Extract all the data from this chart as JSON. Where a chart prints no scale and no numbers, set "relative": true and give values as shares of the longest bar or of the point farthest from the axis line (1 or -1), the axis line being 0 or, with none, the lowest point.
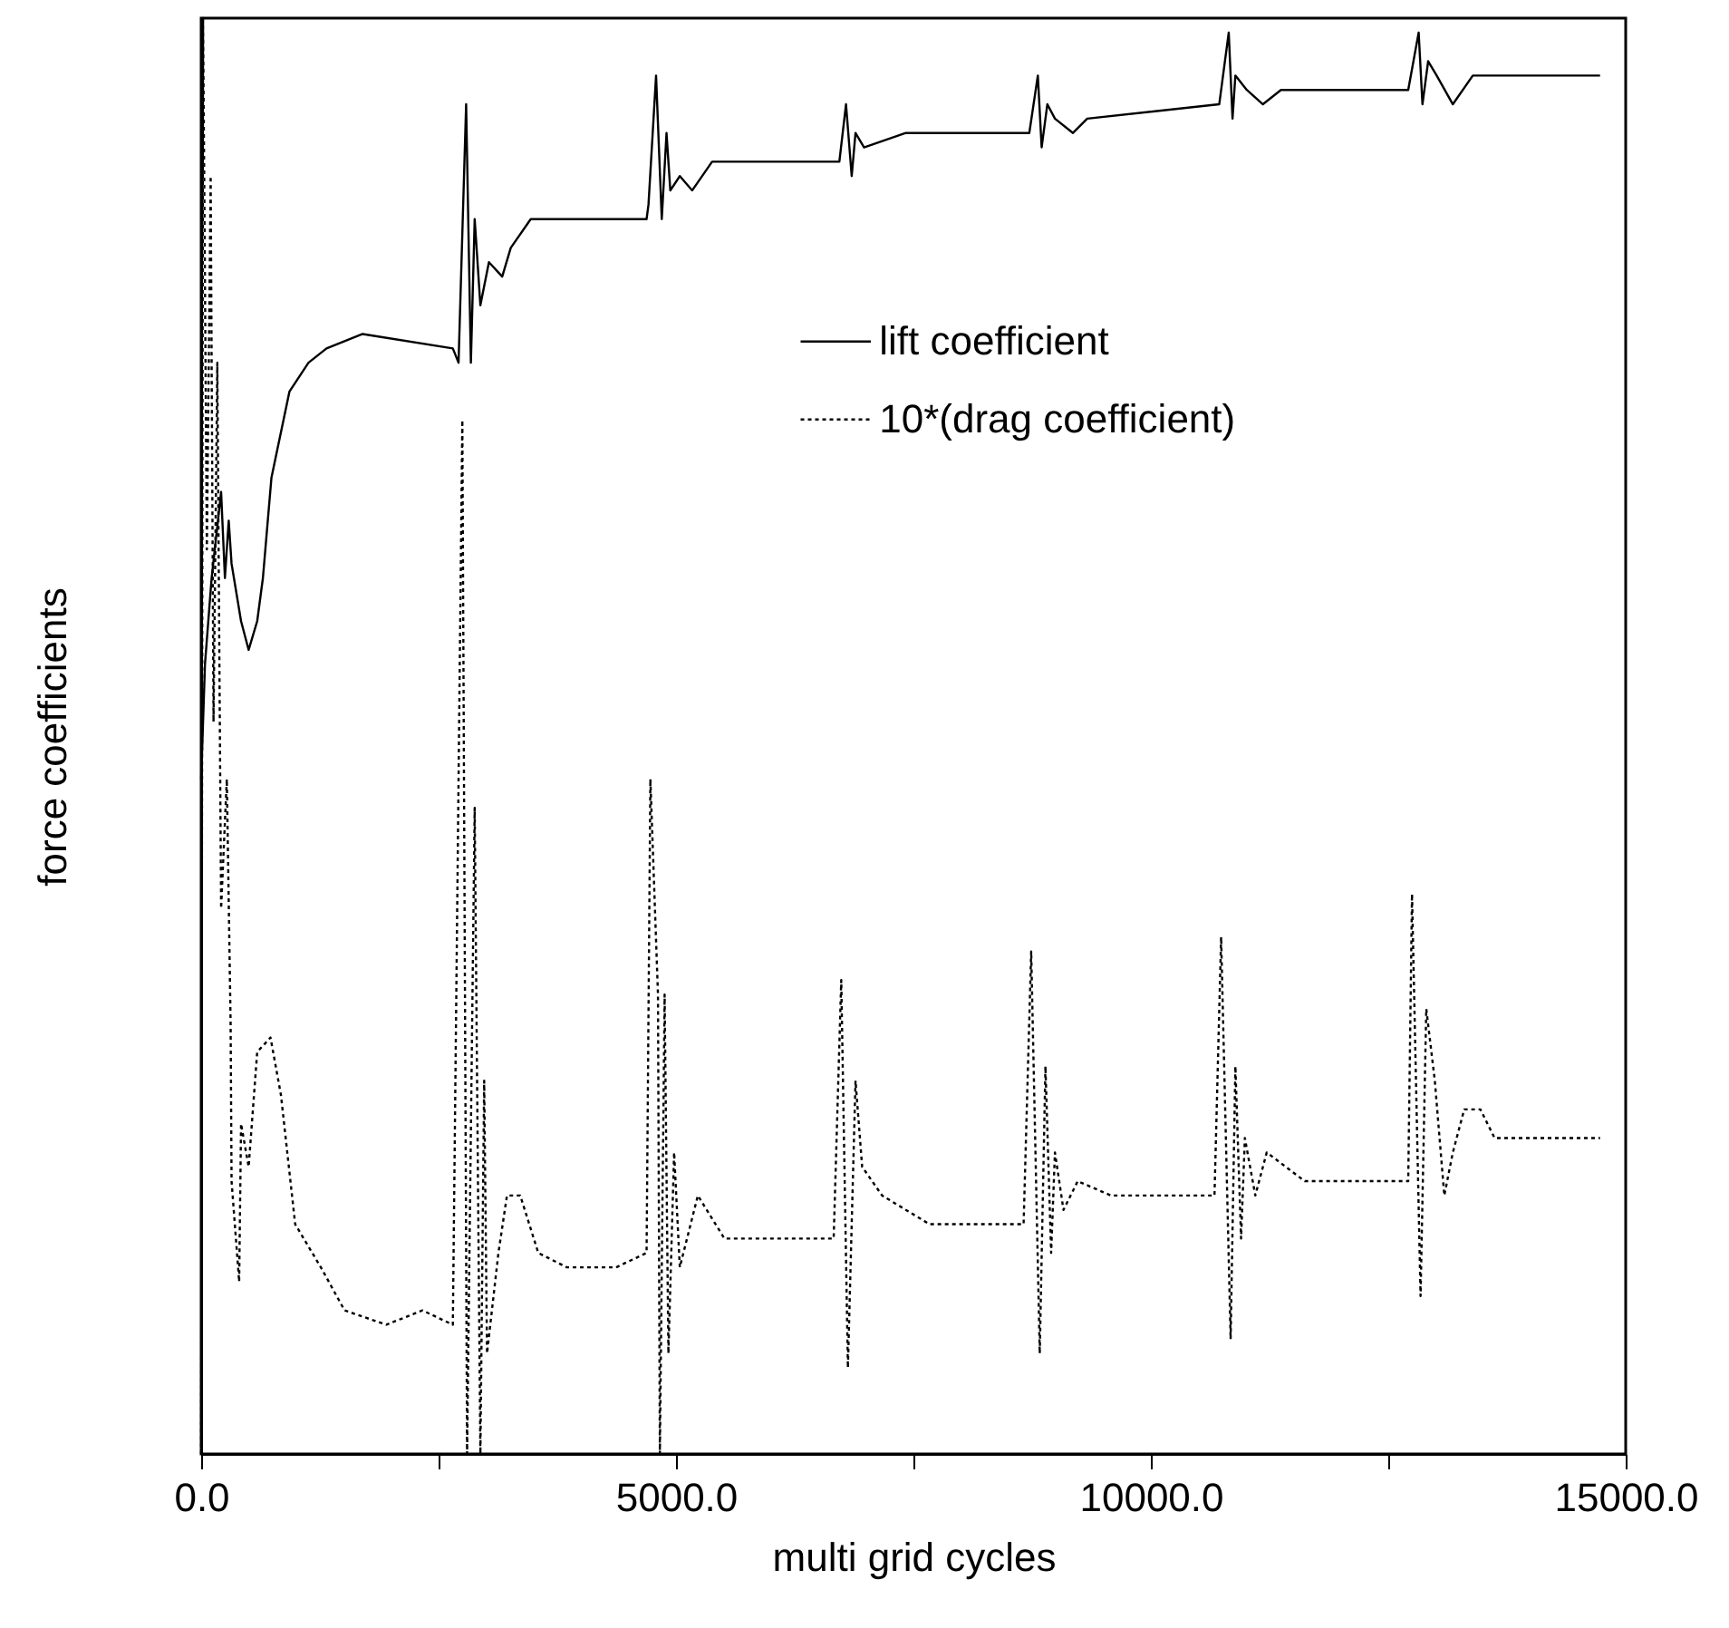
{
  "chart_data": {
    "type": "line",
    "relative": true,
    "xlabel": "multi grid cycles",
    "ylabel": "force coefficients",
    "xlim": [
      0,
      15000
    ],
    "xticks": [
      {
        "value": 0,
        "label": "0.0"
      },
      {
        "value": 2500,
        "label": null
      },
      {
        "value": 5000,
        "label": "5000.0"
      },
      {
        "value": 7500,
        "label": null
      },
      {
        "value": 10000,
        "label": "10000.0"
      },
      {
        "value": 12500,
        "label": null
      },
      {
        "value": 15000,
        "label": "15000.0"
      }
    ],
    "tick_labels": "x",
    "grid": false,
    "legend": "top right",
    "marker": "none",
    "series": [
      {
        "name": "lift coefficient",
        "color": "#000000",
        "line_style": "solid",
        "x": [
          0,
          40,
          110,
          210,
          250,
          290,
          320,
          420,
          500,
          590,
          650,
          740,
          930,
          1130,
          1320,
          1700,
          2650,
          2710,
          2790,
          2840,
          2880,
          2940,
          3030,
          3170,
          3260,
          3470,
          3740,
          4690,
          4710,
          4790,
          4850,
          4900,
          4940,
          5040,
          5170,
          5380,
          5840,
          6720,
          6790,
          6850,
          6890,
          6980,
          7420,
          8720,
          8810,
          8850,
          8910,
          8990,
          9180,
          9330,
          10720,
          10820,
          10860,
          10890,
          11010,
          11180,
          11370,
          12710,
          12820,
          12860,
          12920,
          13010,
          13180,
          13390,
          14730
        ],
        "values": [
          0.47,
          0.55,
          0.61,
          0.67,
          0.61,
          0.65,
          0.62,
          0.58,
          0.56,
          0.58,
          0.61,
          0.68,
          0.74,
          0.76,
          0.77,
          0.78,
          0.77,
          0.76,
          0.94,
          0.76,
          0.86,
          0.8,
          0.83,
          0.82,
          0.84,
          0.86,
          0.86,
          0.86,
          0.87,
          0.96,
          0.86,
          0.92,
          0.88,
          0.89,
          0.88,
          0.9,
          0.9,
          0.9,
          0.94,
          0.89,
          0.92,
          0.91,
          0.92,
          0.92,
          0.96,
          0.91,
          0.94,
          0.93,
          0.92,
          0.93,
          0.94,
          0.99,
          0.93,
          0.96,
          0.95,
          0.94,
          0.95,
          0.95,
          0.99,
          0.94,
          0.97,
          0.96,
          0.94,
          0.96,
          0.96
        ]
      },
      {
        "name": "10*(drag coefficient)",
        "color": "#000000",
        "line_style": "dotted",
        "x": [
          0,
          20,
          60,
          100,
          130,
          170,
          210,
          270,
          310,
          320,
          400,
          420,
          500,
          590,
          730,
          840,
          990,
          1260,
          1510,
          1950,
          2330,
          2650,
          2750,
          2800,
          2880,
          2940,
          2980,
          3010,
          3130,
          3220,
          3360,
          3550,
          3850,
          4370,
          4690,
          4730,
          4810,
          4830,
          4880,
          4920,
          4980,
          5040,
          5230,
          5510,
          5900,
          6660,
          6740,
          6810,
          6890,
          6960,
          7170,
          7420,
          7670,
          8660,
          8740,
          8830,
          8890,
          8950,
          8990,
          9080,
          9230,
          9580,
          10670,
          10740,
          10840,
          10890,
          10950,
          10990,
          11100,
          11220,
          11620,
          12710,
          12750,
          12840,
          12900,
          12990,
          13090,
          13180,
          13300,
          13470,
          13620,
          14040,
          14730
        ],
        "values": [
          0.0,
          1.0,
          0.63,
          0.89,
          0.51,
          0.76,
          0.38,
          0.47,
          0.3,
          0.19,
          0.12,
          0.23,
          0.2,
          0.28,
          0.29,
          0.25,
          0.16,
          0.13,
          0.1,
          0.09,
          0.1,
          0.09,
          0.72,
          0.0,
          0.45,
          0.0,
          0.26,
          0.07,
          0.14,
          0.18,
          0.18,
          0.14,
          0.13,
          0.13,
          0.14,
          0.47,
          0.32,
          0.0,
          0.32,
          0.07,
          0.21,
          0.13,
          0.18,
          0.15,
          0.15,
          0.15,
          0.33,
          0.06,
          0.26,
          0.2,
          0.18,
          0.17,
          0.16,
          0.16,
          0.35,
          0.07,
          0.27,
          0.14,
          0.21,
          0.17,
          0.19,
          0.18,
          0.18,
          0.36,
          0.08,
          0.27,
          0.15,
          0.22,
          0.18,
          0.21,
          0.19,
          0.19,
          0.39,
          0.11,
          0.31,
          0.26,
          0.18,
          0.21,
          0.24,
          0.24,
          0.22,
          0.22,
          0.22
        ]
      }
    ]
  }
}
